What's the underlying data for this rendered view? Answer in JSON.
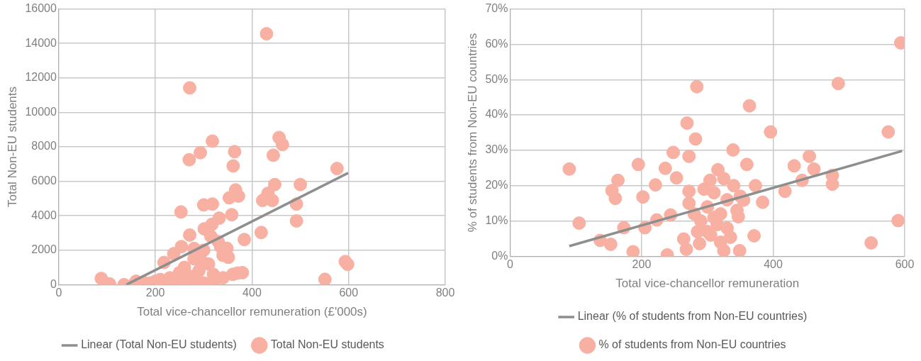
{
  "chart_data": [
    {
      "type": "scatter",
      "xlabel": "Total vice-chancellor remuneration (£'000s)",
      "ylabel": "Total Non-EU students",
      "xlim": [
        0,
        800
      ],
      "xticks": [
        0,
        200,
        400,
        600,
        800
      ],
      "ylim": [
        0,
        16000
      ],
      "yticks": [
        0,
        2000,
        4000,
        6000,
        8000,
        10000,
        12000,
        14000,
        16000
      ],
      "grid": true,
      "legend": "bottom",
      "series": [
        {
          "name": "Total Non-EU students",
          "marker": "circle",
          "color": "#f8b0a2",
          "x": [
            430,
            271,
            270,
            293,
            318,
            364,
            361,
            456,
            463,
            444,
            253,
            300,
            318,
            353,
            366,
            372,
            358,
            447,
            500,
            433,
            422,
            442,
            492,
            492,
            419,
            384,
            271,
            301,
            317,
            332,
            576,
            593,
            598,
            551,
            88,
            105,
            135,
            160,
            175,
            190,
            200,
            210,
            218,
            238,
            254,
            260,
            270,
            280,
            290,
            300,
            310,
            320,
            330,
            340,
            348,
            351,
            370,
            230,
            245,
            265,
            285,
            300,
            340,
            360,
            380,
            250,
            280,
            295,
            315,
            335,
            215,
            155,
            320
          ],
          "values": [
            14560,
            11420,
            7250,
            7660,
            8330,
            7720,
            6890,
            8540,
            8130,
            7510,
            4220,
            4630,
            4680,
            5040,
            5500,
            5140,
            4060,
            5810,
            5810,
            5300,
            4890,
            4890,
            4680,
            3700,
            3030,
            2620,
            2880,
            3240,
            3500,
            3860,
            6740,
            1340,
            1180,
            310,
            360,
            50,
            0,
            200,
            150,
            100,
            200,
            300,
            1290,
            1800,
            2210,
            1000,
            500,
            1500,
            800,
            2000,
            1200,
            600,
            2500,
            1700,
            2110,
            1590,
            670,
            400,
            100,
            200,
            300,
            100,
            400,
            600,
            700,
            700,
            2100,
            1400,
            2800,
            2200,
            50,
            0,
            100
          ]
        },
        {
          "name": "Linear (Total Non-EU students)",
          "type": "line",
          "marker": "none",
          "color": "#8e8e8e",
          "x": [
            140,
            599
          ],
          "values": [
            0,
            6480
          ]
        }
      ]
    },
    {
      "type": "scatter",
      "xlabel": "Total vice-chancellor remuneration",
      "ylabel": "% of students from Non-EU countries",
      "xlim": [
        0,
        600
      ],
      "xticks": [
        0,
        200,
        400,
        600
      ],
      "ylim": [
        0,
        70
      ],
      "yticks": [
        {
          "value": 0,
          "label": "0%"
        },
        {
          "value": 10,
          "label": "10%"
        },
        {
          "value": 20,
          "label": "20%"
        },
        {
          "value": 30,
          "label": "30%"
        },
        {
          "value": 40,
          "label": "40%"
        },
        {
          "value": 50,
          "label": "50%"
        },
        {
          "value": 60,
          "label": "60%"
        },
        {
          "value": 70,
          "label": "70%"
        }
      ],
      "grid": true,
      "legend": "bottom",
      "series": [
        {
          "name": "% of students from Non-EU countries",
          "marker": "circle",
          "color": "#f8b0a2",
          "x": [
            90,
            284,
            269,
            282,
            248,
            272,
            195,
            236,
            253,
            164,
            155,
            160,
            221,
            202,
            272,
            272,
            105,
            173,
            137,
            153,
            187,
            205,
            223,
            244,
            239,
            268,
            288,
            264,
            304,
            594,
            499,
            364,
            396,
            575,
            339,
            455,
            432,
            462,
            360,
            316,
            444,
            490,
            490,
            418,
            373,
            384,
            355,
            590,
            549,
            371,
            347,
            335,
            325,
            349,
            300,
            310,
            320,
            330,
            290,
            300,
            315,
            340,
            325,
            295,
            280,
            305,
            320,
            285,
            350,
            345,
            330,
            310
          ],
          "values": [
            24.7,
            48.0,
            37.7,
            33.2,
            29.4,
            28.3,
            26.0,
            24.9,
            22.2,
            21.5,
            18.6,
            16.4,
            20.2,
            16.8,
            18.4,
            15.0,
            9.4,
            8.1,
            4.5,
            3.4,
            1.3,
            8.1,
            10.3,
            11.7,
            0.4,
            2.0,
            3.6,
            4.9,
            21.5,
            60.4,
            48.9,
            42.6,
            35.2,
            35.2,
            30.1,
            28.3,
            25.6,
            24.7,
            26.0,
            24.5,
            21.5,
            22.9,
            20.4,
            18.4,
            20.0,
            15.3,
            15.9,
            10.1,
            3.8,
            5.8,
            11.2,
            5.4,
            1.6,
            1.6,
            14,
            18,
            12,
            16,
            10,
            7,
            9,
            20,
            22,
            19,
            12,
            6,
            4,
            7,
            17,
            13,
            8,
            11
          ]
        },
        {
          "name": "Linear (% of students from Non-EU countries)",
          "type": "line",
          "marker": "none",
          "color": "#8e8e8e",
          "x": [
            90,
            596
          ],
          "values": [
            2.9,
            29.8
          ]
        }
      ]
    }
  ]
}
